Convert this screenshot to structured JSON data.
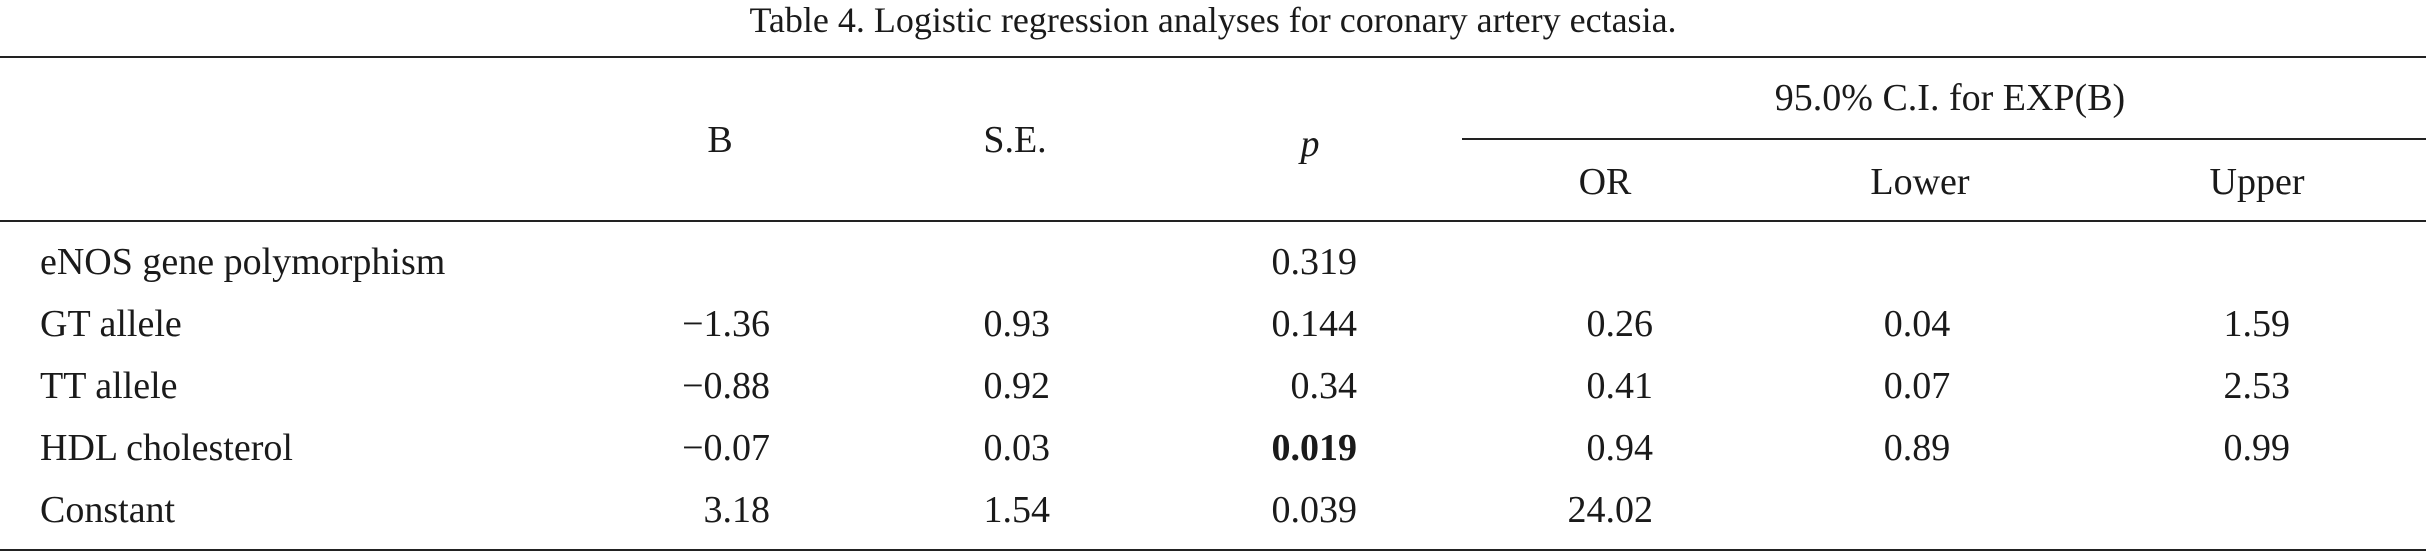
{
  "table": {
    "caption": "Table 4.  Logistic regression analyses for coronary artery ectasia.",
    "headers": {
      "b": "B",
      "se": "S.E.",
      "p": "p",
      "ci_group": "95.0% C.I.  for EXP(B)",
      "or": "OR",
      "lower": "Lower",
      "upper": "Upper"
    },
    "rows": [
      {
        "label": "eNOS gene polymorphism",
        "b": "",
        "se": "",
        "p": "0.319",
        "p_bold": false,
        "or": "",
        "lower": "",
        "upper": ""
      },
      {
        "label": "GT allele",
        "b": "−1.36",
        "se": "0.93",
        "p": "0.144",
        "p_bold": false,
        "or": "0.26",
        "lower": "0.04",
        "upper": "1.59"
      },
      {
        "label": "TT allele",
        "b": "−0.88",
        "se": "0.92",
        "p": "0.34",
        "p_bold": false,
        "or": "0.41",
        "lower": "0.07",
        "upper": "2.53"
      },
      {
        "label": "HDL cholesterol",
        "b": "−0.07",
        "se": "0.03",
        "p": "0.019",
        "p_bold": true,
        "or": "0.94",
        "lower": "0.89",
        "upper": "0.99"
      },
      {
        "label": "Constant",
        "b": "3.18",
        "se": "1.54",
        "p": "0.039",
        "p_bold": false,
        "or": "24.02",
        "lower": "",
        "upper": ""
      }
    ]
  }
}
